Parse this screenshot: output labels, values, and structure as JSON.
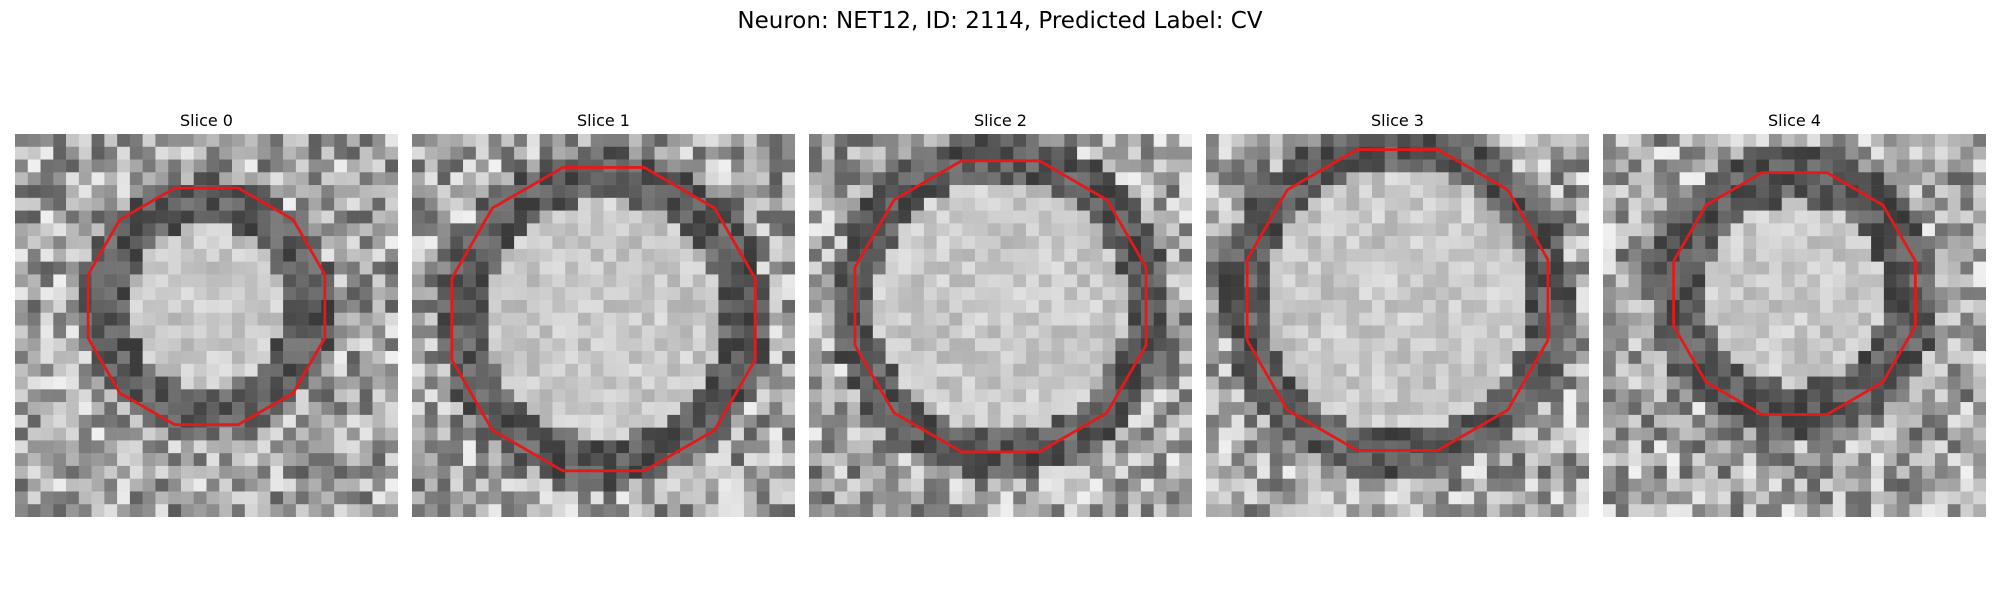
{
  "figure": {
    "title": "Neuron: NET12, ID: 2114, Predicted Label: CV"
  },
  "panels": [
    {
      "title": "Slice 0"
    },
    {
      "title": "Slice 1"
    },
    {
      "title": "Slice 2"
    },
    {
      "title": "Slice 3"
    },
    {
      "title": "Slice 4"
    }
  ],
  "colors": {
    "contour": "#e31a1c",
    "background": "#ffffff"
  },
  "image": {
    "colormap": "grayscale"
  }
}
